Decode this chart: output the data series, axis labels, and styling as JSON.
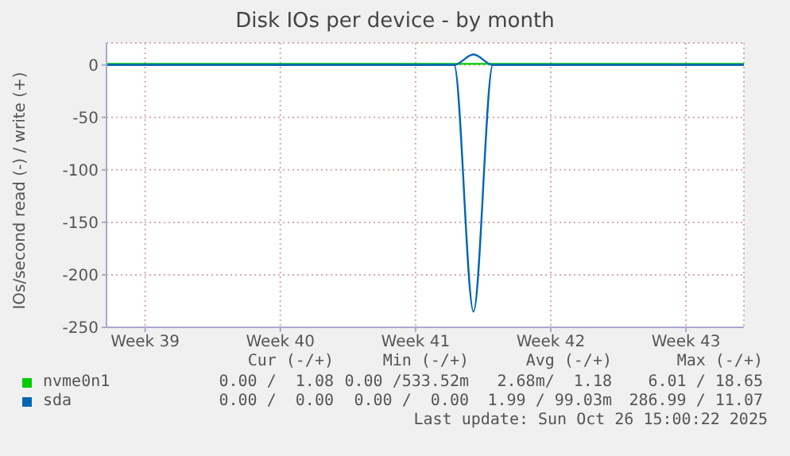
{
  "chart_data": {
    "type": "line",
    "title": "Disk IOs per device - by month",
    "ylabel": "IOs/second read (-) / write (+)",
    "categories": [
      null,
      null,
      "Week 39",
      null,
      null,
      null,
      null,
      null,
      null,
      "Week 40",
      null,
      null,
      null,
      null,
      null,
      null,
      "Week 41",
      null,
      null,
      null,
      null,
      null,
      null,
      "Week 42",
      null,
      null,
      null,
      null,
      null,
      null,
      "Week 43",
      null,
      null,
      null
    ],
    "ylim": [
      -250,
      21
    ],
    "yticks": [
      -250,
      -200,
      -150,
      -100,
      -50,
      0
    ],
    "grid": true,
    "legend": "bottom",
    "marker": "none",
    "line_style": "solid",
    "series": [
      {
        "name": "nvme0n1",
        "color": "#00cc00",
        "values": [
          1,
          1,
          1,
          1,
          1,
          1,
          1,
          1,
          1,
          1,
          1,
          1,
          1,
          1,
          1,
          1,
          1,
          1,
          1,
          1,
          1,
          1,
          1,
          1,
          1,
          1,
          1,
          1,
          1,
          1,
          1,
          1,
          1,
          1
        ]
      },
      {
        "name": "sda",
        "color": "#0066b3",
        "values": [
          0,
          0,
          0,
          0,
          0,
          0,
          0,
          0,
          0,
          0,
          0,
          0,
          0,
          0,
          0,
          0,
          0,
          0,
          0,
          -235,
          0,
          0,
          0,
          0,
          0,
          0,
          0,
          0,
          0,
          0,
          0,
          0,
          0,
          0
        ]
      },
      {
        "color": "#0066b3",
        "values": [
          0,
          0,
          0,
          0,
          0,
          0,
          0,
          0,
          0,
          0,
          0,
          0,
          0,
          0,
          0,
          0,
          0,
          0,
          0,
          10,
          0,
          0,
          0,
          0,
          0,
          0,
          0,
          0,
          0,
          0,
          0,
          0,
          0,
          0
        ]
      }
    ],
    "annotations": [
      "Cur (-/+)",
      "Min (-/+)",
      "Avg (-/+)",
      "Max (-/+)",
      "0.00 /  1.08",
      "0.00 /533.52m",
      "2.68m/  1.18",
      "6.01 / 18.65",
      "0.00 /  0.00",
      "0.00 /  0.00",
      "1.99 / 99.03m",
      "286.99 / 11.07",
      "Last update: Sun Oct 26 15:00:22 2025"
    ]
  }
}
